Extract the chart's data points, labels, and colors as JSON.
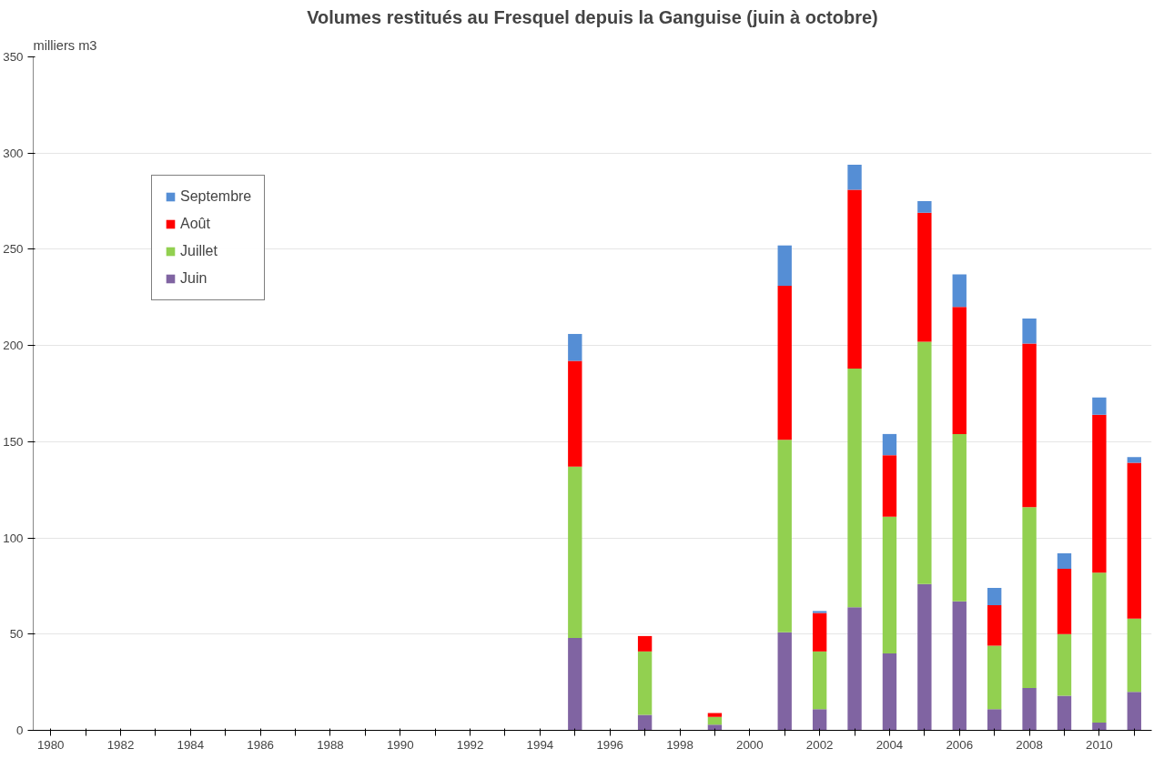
{
  "chart_data": {
    "type": "bar",
    "stacked": true,
    "title": "Volumes restitués au Fresquel depuis la Ganguise (juin à octobre)",
    "ylabel": "milliers m3",
    "categories": [
      "1980",
      null,
      "1982",
      null,
      "1984",
      null,
      "1986",
      null,
      "1988",
      null,
      "1990",
      null,
      "1992",
      null,
      "1994",
      null,
      "1996",
      null,
      "1998",
      null,
      "2000",
      null,
      "2002",
      null,
      "2004",
      null,
      "2006",
      null,
      "2008",
      null,
      "2010",
      null
    ],
    "series": [
      {
        "name": "Juin",
        "color": "#8064a2",
        "values": [
          null,
          null,
          null,
          null,
          null,
          null,
          null,
          null,
          null,
          null,
          null,
          null,
          null,
          null,
          null,
          48,
          null,
          8,
          null,
          3,
          null,
          51,
          11,
          64,
          40,
          76,
          67,
          11,
          22,
          18,
          4,
          20
        ]
      },
      {
        "name": "Juillet",
        "color": "#92d050",
        "values": [
          null,
          null,
          null,
          null,
          null,
          null,
          null,
          null,
          null,
          null,
          null,
          null,
          null,
          null,
          null,
          89,
          null,
          33,
          null,
          4,
          null,
          100,
          30,
          124,
          71,
          126,
          87,
          33,
          94,
          32,
          78,
          38
        ]
      },
      {
        "name": "Août",
        "color": "#ff0000",
        "values": [
          null,
          null,
          null,
          null,
          null,
          null,
          null,
          null,
          null,
          null,
          null,
          null,
          null,
          null,
          null,
          55,
          null,
          8,
          null,
          2,
          null,
          80,
          20,
          93,
          32,
          67,
          66,
          21,
          85,
          34,
          82,
          81
        ]
      },
      {
        "name": "Septembre",
        "color": "#558ed5",
        "values": [
          null,
          null,
          null,
          null,
          null,
          null,
          null,
          null,
          null,
          null,
          null,
          null,
          null,
          null,
          null,
          14,
          null,
          null,
          null,
          null,
          null,
          21,
          1,
          13,
          11,
          6,
          17,
          9,
          13,
          8,
          9,
          3
        ]
      }
    ],
    "ylim": [
      0,
      350
    ],
    "yticks": [
      0,
      50,
      100,
      150,
      200,
      250,
      300,
      350
    ],
    "grid": "y",
    "legend": "top left"
  }
}
